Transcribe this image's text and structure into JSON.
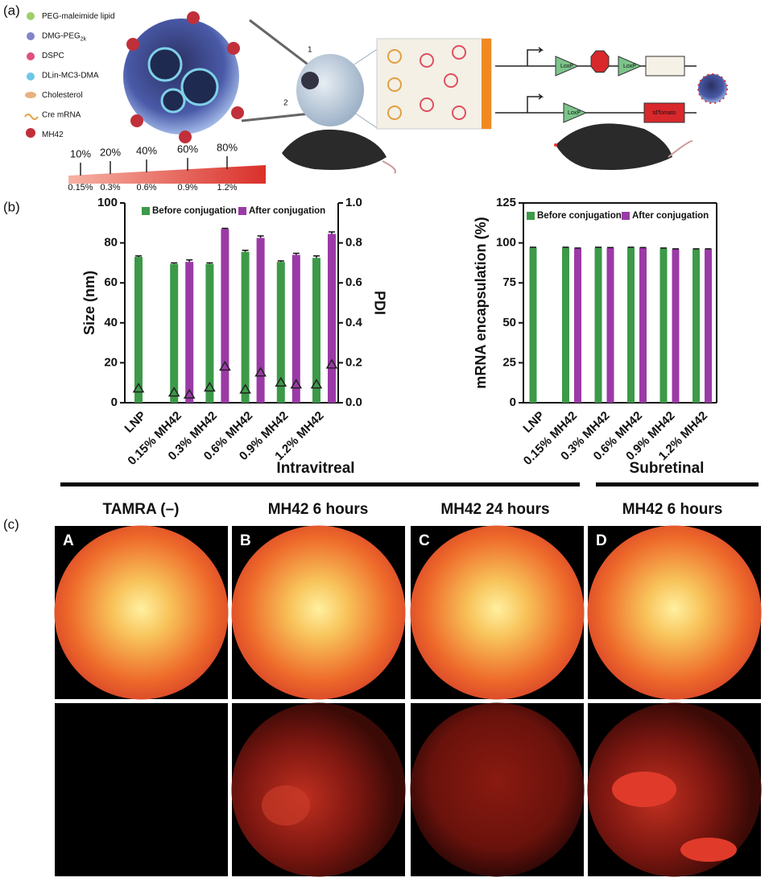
{
  "panel_labels": [
    "(a)",
    "(b)",
    "(c)"
  ],
  "schematic": {
    "legend": [
      {
        "label": "PEG-maleimide lipid"
      },
      {
        "label": "DMG-PEG",
        "sub": "2k"
      },
      {
        "label": "DSPC"
      },
      {
        "label": "DLin-MC3-DMA"
      },
      {
        "label": "Cholesterol"
      },
      {
        "label": "Cre mRNA"
      },
      {
        "label": "MH42"
      }
    ],
    "injection": [
      "1",
      "2"
    ],
    "ratio_top": [
      "10%",
      "20%",
      "40%",
      "60%",
      "80%"
    ],
    "ratio_bottom": [
      "0.15%",
      "0.3%",
      "0.6%",
      "0.9%",
      "1.2%"
    ],
    "construct_top": [
      "LoxP",
      "LoxP"
    ],
    "construct_bottom": [
      "LoxP",
      "tdTomato"
    ]
  },
  "chart_data": [
    {
      "type": "bar",
      "categories": [
        "LNP",
        "0.15% MH42",
        "0.3% MH42",
        "0.6% MH42",
        "0.9% MH42",
        "1.2% MH42"
      ],
      "ylabel": "Size (nm)",
      "y2label": "PDI",
      "ylim": [
        0,
        100
      ],
      "yticks": [
        0,
        20,
        40,
        60,
        80,
        100
      ],
      "y2lim": [
        0,
        1
      ],
      "y2ticks": [
        {
          "value": 0,
          "label": "0.0"
        },
        0.2,
        0.4,
        0.6,
        0.8,
        {
          "value": 1,
          "label": "1.0"
        }
      ],
      "series": [
        {
          "name": "Before conjugation",
          "color": "#3c9a48",
          "values": [
            73,
            69.5,
            69.5,
            75.5,
            70.5,
            72.5
          ],
          "errors": [
            0.5,
            0.5,
            0.5,
            0.8,
            0.5,
            1
          ]
        },
        {
          "name": "After conjugation",
          "color": "#9b3aa6",
          "values": [
            null,
            70.5,
            87,
            82.5,
            74,
            84.5
          ],
          "errors": [
            null,
            1,
            0.3,
            1,
            0.8,
            1
          ]
        },
        {
          "color": "#222222",
          "marker": "triangle",
          "axis": "y2",
          "values": [
            0.07,
            0.05,
            0.075,
            0.065,
            0.1,
            0.09
          ]
        },
        {
          "color": "#222222",
          "marker": "triangle",
          "axis": "y2",
          "values": [
            null,
            0.04,
            0.18,
            0.15,
            0.09,
            0.19
          ]
        }
      ]
    },
    {
      "type": "bar",
      "categories": [
        "LNP",
        "0.15% MH42",
        "0.3% MH42",
        "0.6% MH42",
        "0.9% MH42",
        "1.2% MH42"
      ],
      "ylabel": "mRNA encapsulation (%)",
      "ylim": [
        0,
        125
      ],
      "yticks": [
        0,
        25,
        50,
        75,
        100,
        125
      ],
      "frame": true,
      "series": [
        {
          "name": "Before conjugation",
          "color": "#3c9a48",
          "values": [
            97,
            97,
            97,
            97,
            96.5,
            96
          ],
          "errors": [
            0.3,
            0.3,
            0.3,
            0.3,
            0.3,
            0.3
          ]
        },
        {
          "name": "After conjugation",
          "color": "#9b3aa6",
          "values": [
            null,
            96.5,
            96.8,
            96.8,
            96,
            96
          ],
          "errors": [
            null,
            0.3,
            0.3,
            0.3,
            0.3,
            0.3
          ]
        }
      ]
    }
  ],
  "routes": [
    "Intravitreal",
    "Subretinal"
  ],
  "fundus": {
    "titles": [
      "TAMRA (–)",
      "MH42 6 hours",
      "MH42 24 hours",
      "MH42 6 hours"
    ],
    "letters": [
      "A",
      "B",
      "C",
      "D"
    ]
  }
}
